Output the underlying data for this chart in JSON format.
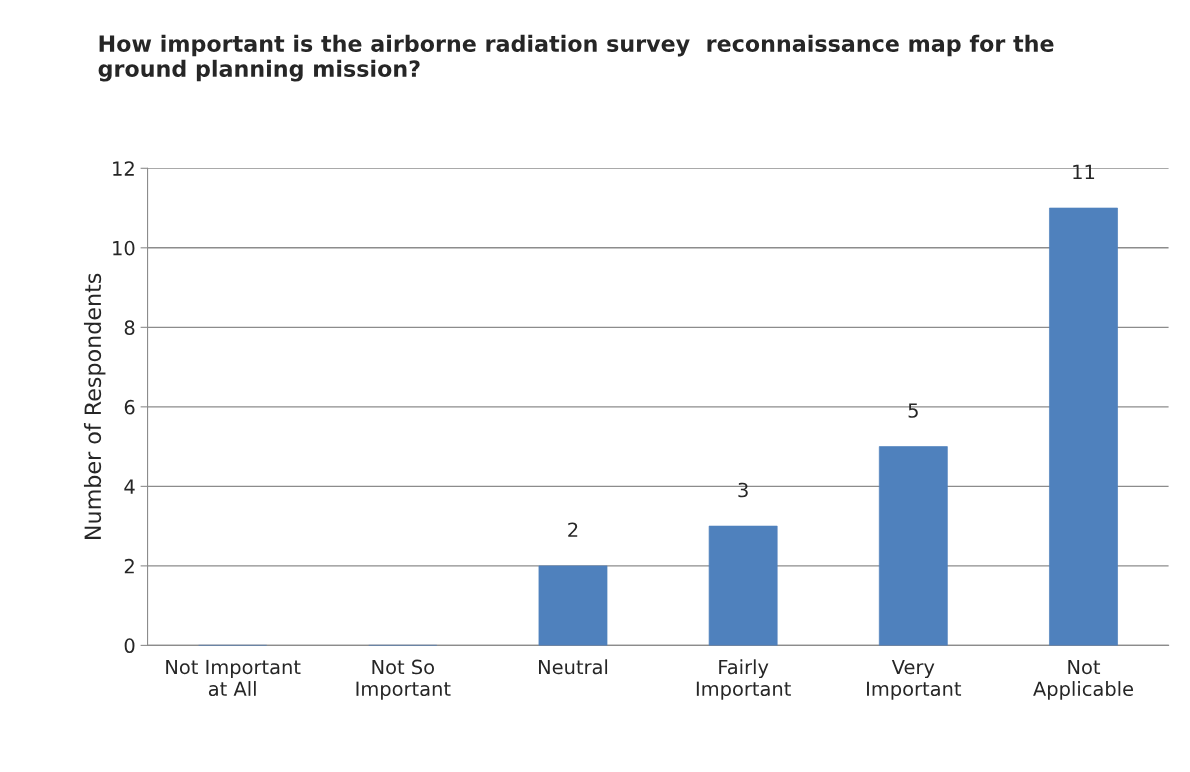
{
  "chart_data": {
    "type": "bar",
    "title": "How important is the airborne radiation survey  reconnaissance map for the ground planning mission?",
    "ylabel": "Number of Respondents",
    "categories": [
      "Not Important\nat All",
      "Not So\nImportant",
      "Neutral",
      "Fairly\nImportant",
      "Very\nImportant",
      "Not\nApplicable"
    ],
    "values": [
      0,
      0,
      2,
      3,
      5,
      11
    ],
    "value_labels": [
      null,
      null,
      "2",
      "3",
      "5",
      "11"
    ],
    "color": "#4f81bd",
    "ylim": [
      0,
      12
    ],
    "yticks": [
      0,
      2,
      4,
      6,
      8,
      10,
      12
    ],
    "grid": "y",
    "legend": false
  }
}
